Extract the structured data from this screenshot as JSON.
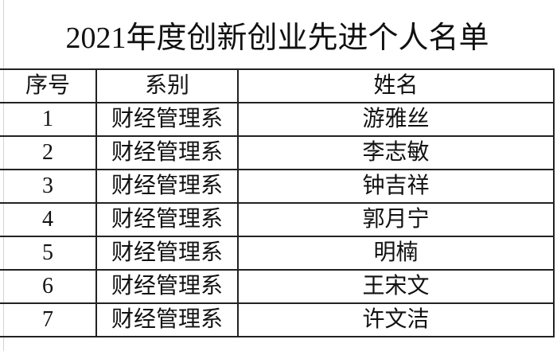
{
  "sheet": {
    "title": "2021年度创新创业先进个人名单",
    "columns": [
      "序号",
      "系别",
      "姓名"
    ],
    "rows": [
      [
        "1",
        "财经管理系",
        "游雅丝"
      ],
      [
        "2",
        "财经管理系",
        "李志敏"
      ],
      [
        "3",
        "财经管理系",
        "钟吉祥"
      ],
      [
        "4",
        "财经管理系",
        "郭月宁"
      ],
      [
        "5",
        "财经管理系",
        "明楠"
      ],
      [
        "6",
        "财经管理系",
        "王宋文"
      ],
      [
        "7",
        "财经管理系",
        "许文洁"
      ]
    ]
  }
}
